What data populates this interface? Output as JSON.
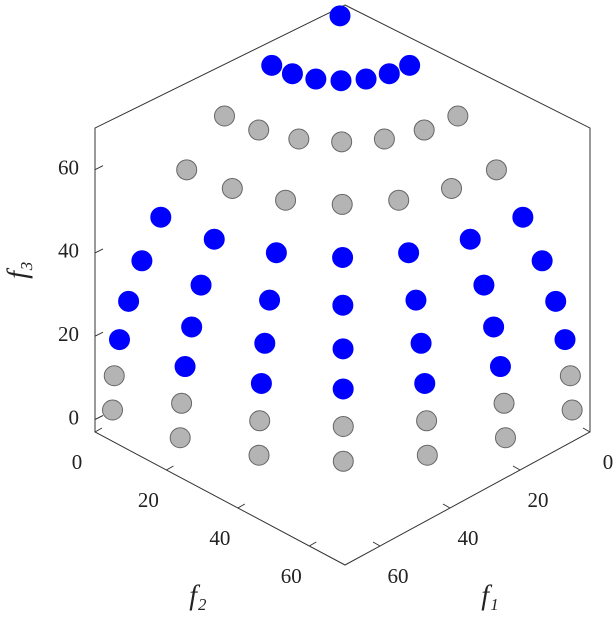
{
  "chart_data": {
    "type": "scatter3d",
    "xlabel": "f₁",
    "ylabel": "f₂",
    "zlabel": "f₃",
    "xlim": [
      0,
      70
    ],
    "ylim": [
      0,
      70
    ],
    "zlim": [
      -3,
      70
    ],
    "xticks": [
      0,
      20,
      40,
      60
    ],
    "yticks": [
      0,
      20,
      40,
      60
    ],
    "zticks": [
      0,
      20,
      40,
      60
    ],
    "series": [
      {
        "color": "#b4b4b4",
        "edge": "#666666",
        "x": [
          65,
          62.8,
          56.3,
          46.0,
          32.5,
          16.8,
          0,
          64.5,
          62.3,
          55.9,
          45.6,
          32.3,
          16.7,
          0,
          43.8,
          42.3,
          37.9,
          31.0,
          21.9,
          11.3,
          0,
          33,
          31.9,
          28.6,
          23.3,
          16.5,
          8.5,
          0
        ],
        "y": [
          0,
          16.8,
          32.5,
          46.0,
          56.3,
          62.8,
          65,
          0,
          16.7,
          32.3,
          45.6,
          55.9,
          62.3,
          64.5,
          0,
          11.3,
          21.9,
          31.0,
          37.9,
          42.3,
          43.8,
          0,
          8.5,
          16.5,
          23.3,
          28.6,
          31.9,
          33
        ],
        "z": [
          0,
          0,
          0,
          0,
          0,
          0,
          0,
          8,
          8,
          8,
          8,
          8,
          8,
          8,
          48,
          48,
          48,
          48,
          48,
          48,
          48,
          56,
          56,
          56,
          56,
          56,
          56,
          56
        ]
      },
      {
        "color": "#0000ff",
        "edge": "#0000ff",
        "x": [
          63,
          60.9,
          54.6,
          44.5,
          31.5,
          16.3,
          0,
          60.4,
          58.3,
          52.3,
          42.7,
          30.2,
          15.6,
          0,
          56.6,
          54.7,
          49.0,
          40.0,
          28.3,
          14.7,
          0,
          51.2,
          49.5,
          44.3,
          36.2,
          25.6,
          13.3,
          0,
          19.5,
          18.8,
          16.9,
          13.8,
          9.8,
          5.1,
          0,
          0
        ],
        "y": [
          0,
          16.3,
          31.5,
          44.5,
          54.6,
          60.9,
          63,
          0,
          15.6,
          30.2,
          42.7,
          52.3,
          58.3,
          60.4,
          0,
          14.7,
          28.3,
          40.0,
          49.0,
          54.7,
          56.6,
          0,
          13.3,
          25.6,
          36.2,
          44.3,
          49.5,
          51.2,
          0,
          5.1,
          9.8,
          13.8,
          16.9,
          18.8,
          19.5,
          0
        ],
        "z": [
          16,
          16,
          16,
          16,
          16,
          16,
          16,
          24,
          24,
          24,
          24,
          24,
          24,
          24,
          32,
          32,
          32,
          32,
          32,
          32,
          32,
          40,
          40,
          40,
          40,
          40,
          40,
          40,
          62,
          62,
          62,
          62,
          62,
          62,
          62,
          65
        ]
      }
    ]
  }
}
